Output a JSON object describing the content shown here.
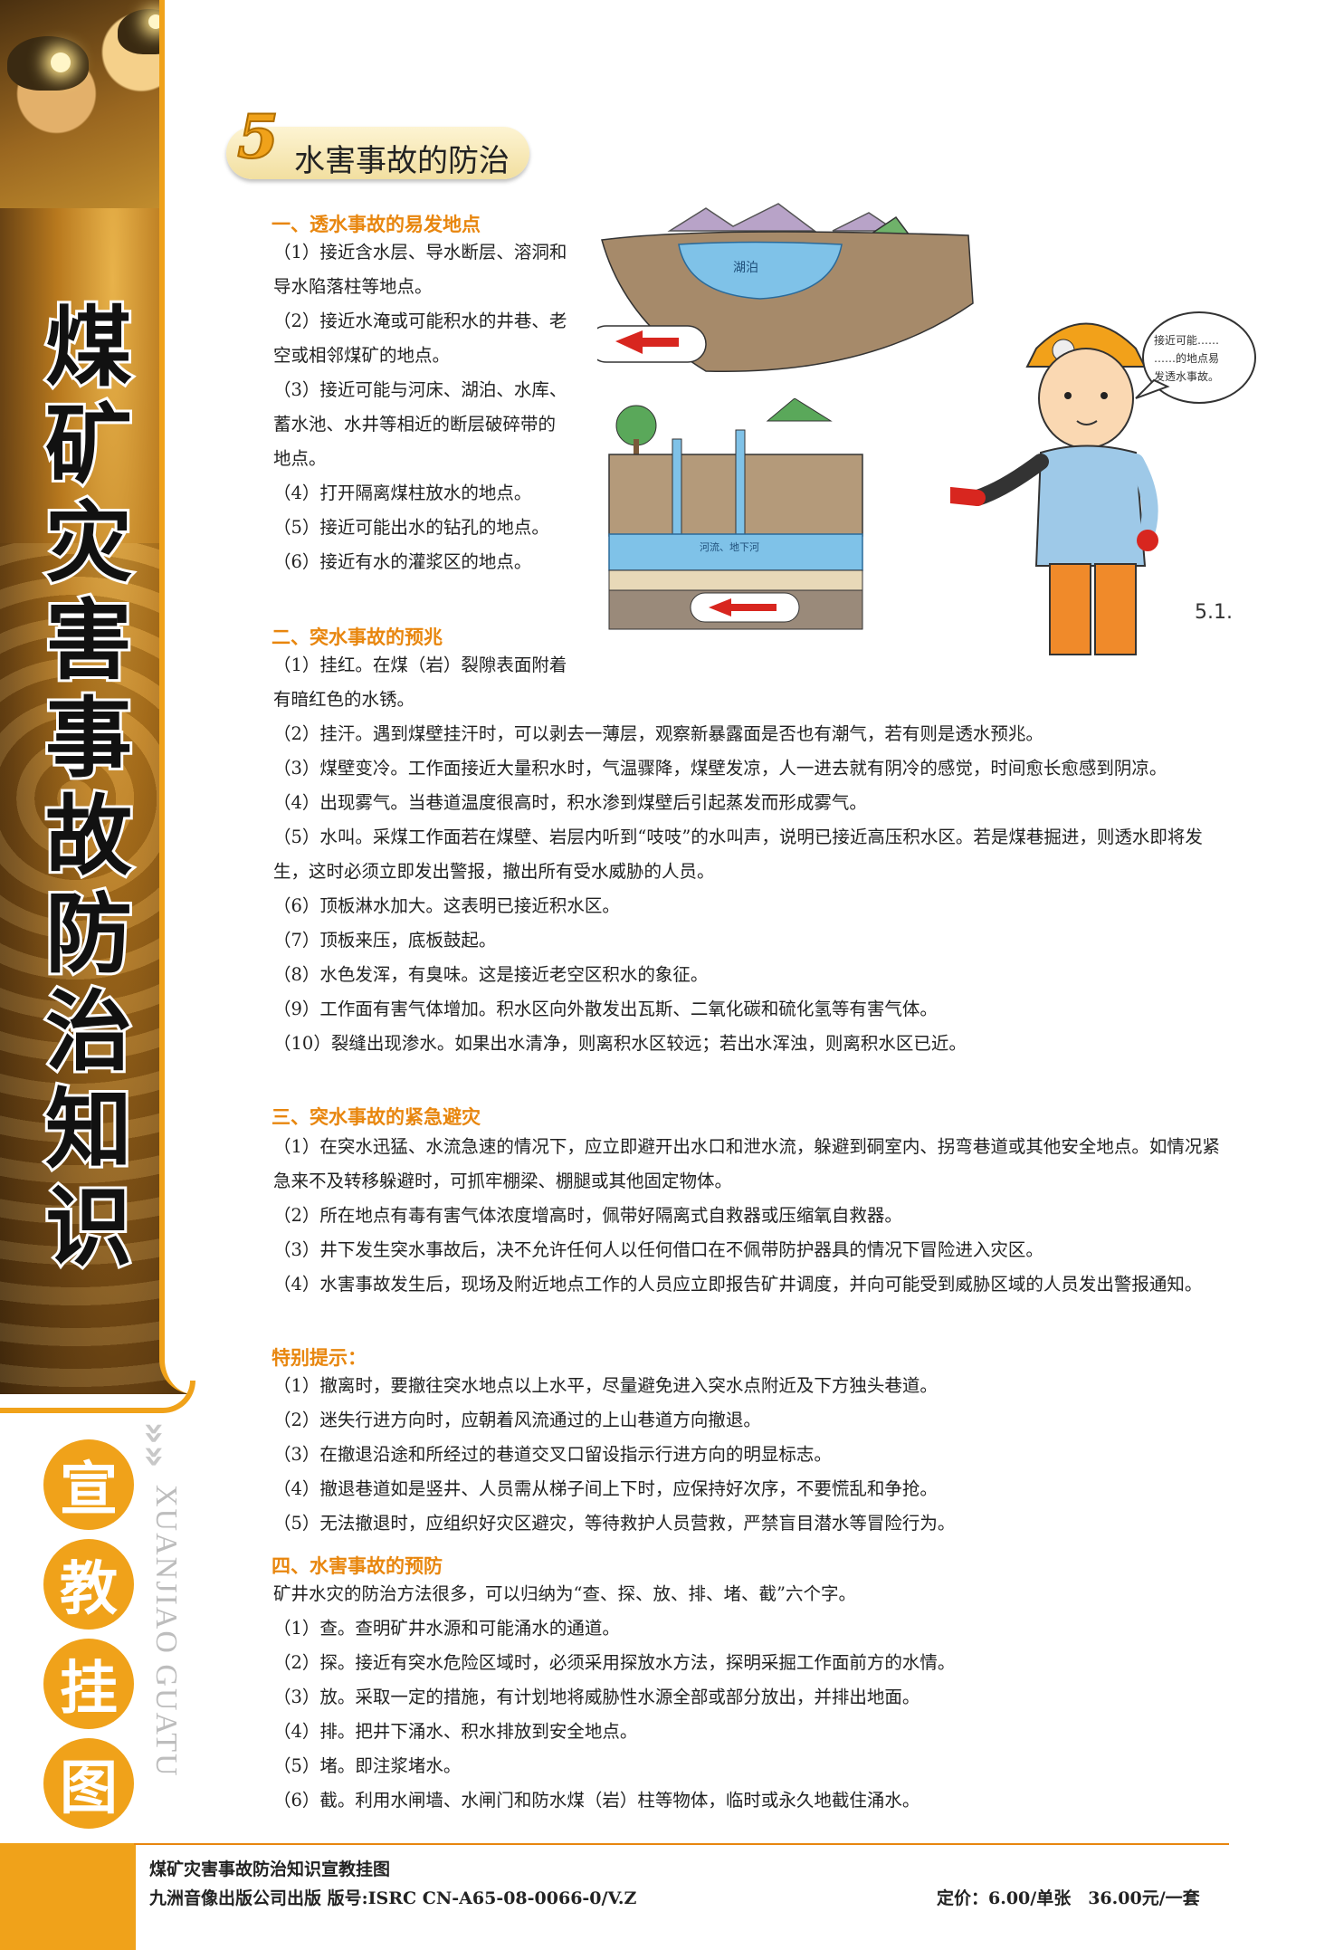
{
  "banner": {
    "title_chars": [
      "煤",
      "矿",
      "灾",
      "害",
      "事",
      "故",
      "防",
      "治",
      "知",
      "识"
    ],
    "sub_chars": [
      "宣",
      "教",
      "挂",
      "图"
    ],
    "chevrons": "»»",
    "vertical_en": "XUANJIAO GUATU"
  },
  "section": {
    "number": "5",
    "title": "水害事故的防治"
  },
  "illustration": {
    "lake_label": "湖泊",
    "river_label": "河流、地下河",
    "speech": [
      "接近可能……",
      "……的地点易",
      "发透水事故。"
    ],
    "signature": "5.1."
  },
  "h1": "一、透水事故的易发地点",
  "s1": [
    "（1）接近含水层、导水断层、溶洞和导水陷落柱等地点。",
    "（2）接近水淹或可能积水的井巷、老空或相邻煤矿的地点。",
    "（3）接近可能与河床、湖泊、水库、蓄水池、水井等相近的断层破碎带的地点。",
    "（4）打开隔离煤柱放水的地点。",
    "（5）接近可能出水的钻孔的地点。",
    "（6）接近有水的灌浆区的地点。"
  ],
  "h2": "二、突水事故的预兆",
  "s2_first": "（1）挂红。在煤（岩）裂隙表面附着有暗红色的水锈。",
  "s2": [
    "（2）挂汗。遇到煤壁挂汗时，可以剥去一薄层，观察新暴露面是否也有潮气，若有则是透水预兆。",
    "（3）煤壁变冷。工作面接近大量积水时，气温骤降，煤壁发凉，人一进去就有阴冷的感觉，时间愈长愈感到阴凉。",
    "（4）出现雾气。当巷道温度很高时，积水渗到煤壁后引起蒸发而形成雾气。",
    "（5）水叫。采煤工作面若在煤壁、岩层内听到“吱吱”的水叫声，说明已接近高压积水区。若是煤巷掘进，则透水即将发生，这时必须立即发出警报，撤出所有受水威胁的人员。",
    "（6）顶板淋水加大。这表明已接近积水区。",
    "（7）顶板来压，底板鼓起。",
    "（8）水色发浑，有臭味。这是接近老空区积水的象征。",
    "（9）工作面有害气体增加。积水区向外散发出瓦斯、二氧化碳和硫化氢等有害气体。",
    "（10）裂缝出现渗水。如果出水清净，则离积水区较远；若出水浑浊，则离积水区已近。"
  ],
  "h3": "三、突水事故的紧急避灾",
  "s3": [
    "（1）在突水迅猛、水流急速的情况下，应立即避开出水口和泄水流，躲避到硐室内、拐弯巷道或其他安全地点。如情况紧急来不及转移躲避时，可抓牢棚梁、棚腿或其他固定物体。",
    "（2）所在地点有毒有害气体浓度增高时，佩带好隔离式自救器或压缩氧自救器。",
    "（3）井下发生突水事故后，决不允许任何人以任何借口在不佩带防护器具的情况下冒险进入灾区。",
    "（4）水害事故发生后，现场及附近地点工作的人员应立即报告矿井调度，并向可能受到威胁区域的人员发出警报通知。"
  ],
  "h_tip": "特别提示：",
  "tips": [
    "（1）撤离时，要撤往突水地点以上水平，尽量避免进入突水点附近及下方独头巷道。",
    "（2）迷失行进方向时，应朝着风流通过的上山巷道方向撤退。",
    "（3）在撤退沿途和所经过的巷道交叉口留设指示行进方向的明显标志。",
    "（4）撤退巷道如是竖井、人员需从梯子间上下时，应保持好次序，不要慌乱和争抢。",
    "（5）无法撤退时，应组织好灾区避灾，等待救护人员营救，严禁盲目潜水等冒险行为。"
  ],
  "h4": "四、水害事故的预防",
  "s4_intro": "矿井水灾的防治方法很多，可以归纳为“查、探、放、排、堵、截”六个字。",
  "s4": [
    "（1）查。查明矿井水源和可能涌水的通道。",
    "（2）探。接近有突水危险区域时，必须采用探放水方法，探明采掘工作面前方的水情。",
    "（3）放。采取一定的措施，有计划地将威胁性水源全部或部分放出，并排出地面。",
    "（4）排。把井下涌水、积水排放到安全地点。",
    "（5）堵。即注浆堵水。",
    "（6）截。利用水闸墙、水闸门和防水煤（岩）柱等物体，临时或永久地截住涌水。"
  ],
  "footer": {
    "line1": "煤矿灾害事故防治知识宣教挂图",
    "line2": "九洲音像出版公司出版 版号:ISRC CN-A65-08-0066-0/V.Z",
    "price": "定价：6.00/单张　36.00元/一套"
  }
}
